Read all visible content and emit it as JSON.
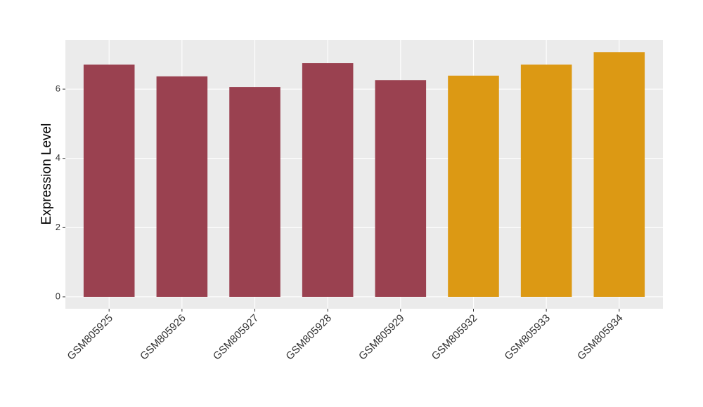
{
  "chart_data": {
    "type": "bar",
    "y_label": "Expression Level",
    "categories": [
      "GSM805925",
      "GSM805926",
      "GSM805927",
      "GSM805928",
      "GSM805929",
      "GSM805932",
      "GSM805933",
      "GSM805934"
    ],
    "values": [
      6.71,
      6.37,
      6.06,
      6.75,
      6.26,
      6.39,
      6.71,
      7.07
    ],
    "colors": [
      "#9a4150",
      "#9a4150",
      "#9a4150",
      "#9a4150",
      "#9a4150",
      "#dc9914",
      "#dc9914",
      "#dc9914"
    ],
    "ylim": [
      -0.345,
      7.42
    ],
    "yticks": [
      0,
      2,
      4,
      6
    ],
    "grid": true
  }
}
